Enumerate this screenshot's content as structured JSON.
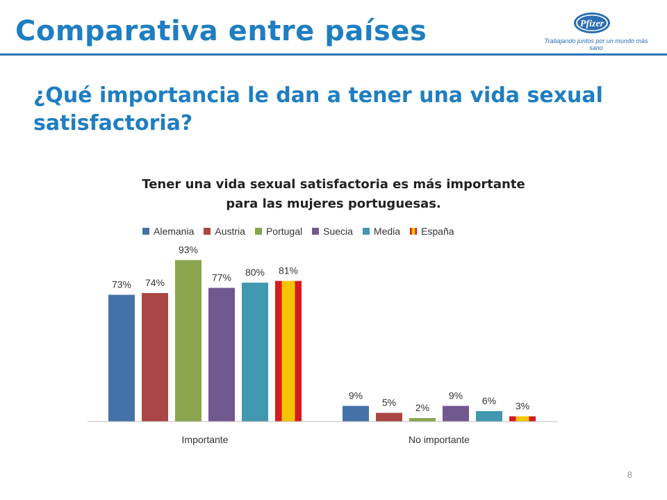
{
  "header": {
    "title": "Comparativa entre países",
    "logo_text": "Pfizer",
    "logo_tagline": "Trabajando juntos por un mundo más sano"
  },
  "question": "¿Qué importancia le dan a tener una vida sexual satisfactoria?",
  "page_number": "8",
  "colors": {
    "title_blue": "#1f7ec1",
    "Alemania": "#4472a8",
    "Austria": "#aa4643",
    "Portugal": "#89a54e",
    "Suecia": "#71588f",
    "Media": "#4198af",
    "España_red": "#d71a21",
    "España_yellow": "#f5c400"
  },
  "chart_data": {
    "type": "bar",
    "title": "Tener una vida sexual satisfactoria es más importante para las mujeres portuguesas.",
    "title_lines": [
      "Tener una vida sexual satisfactoria es más importante",
      "para las mujeres portuguesas."
    ],
    "categories": [
      "Importante",
      "No importante"
    ],
    "series": [
      {
        "name": "Alemania",
        "values": [
          73,
          9
        ],
        "labels": [
          "73%",
          "9%"
        ]
      },
      {
        "name": "Austria",
        "values": [
          74,
          5
        ],
        "labels": [
          "74%",
          "5%"
        ]
      },
      {
        "name": "Portugal",
        "values": [
          93,
          2
        ],
        "labels": [
          "93%",
          "2%"
        ]
      },
      {
        "name": "Suecia",
        "values": [
          77,
          9
        ],
        "labels": [
          "77%",
          "9%"
        ]
      },
      {
        "name": "Media",
        "values": [
          80,
          6
        ],
        "labels": [
          "80%",
          "6%"
        ]
      },
      {
        "name": "España",
        "values": [
          81,
          3
        ],
        "labels": [
          "81%",
          "3%"
        ]
      }
    ],
    "ylim": [
      0,
      100
    ],
    "legend_position": "top",
    "grid": false
  }
}
